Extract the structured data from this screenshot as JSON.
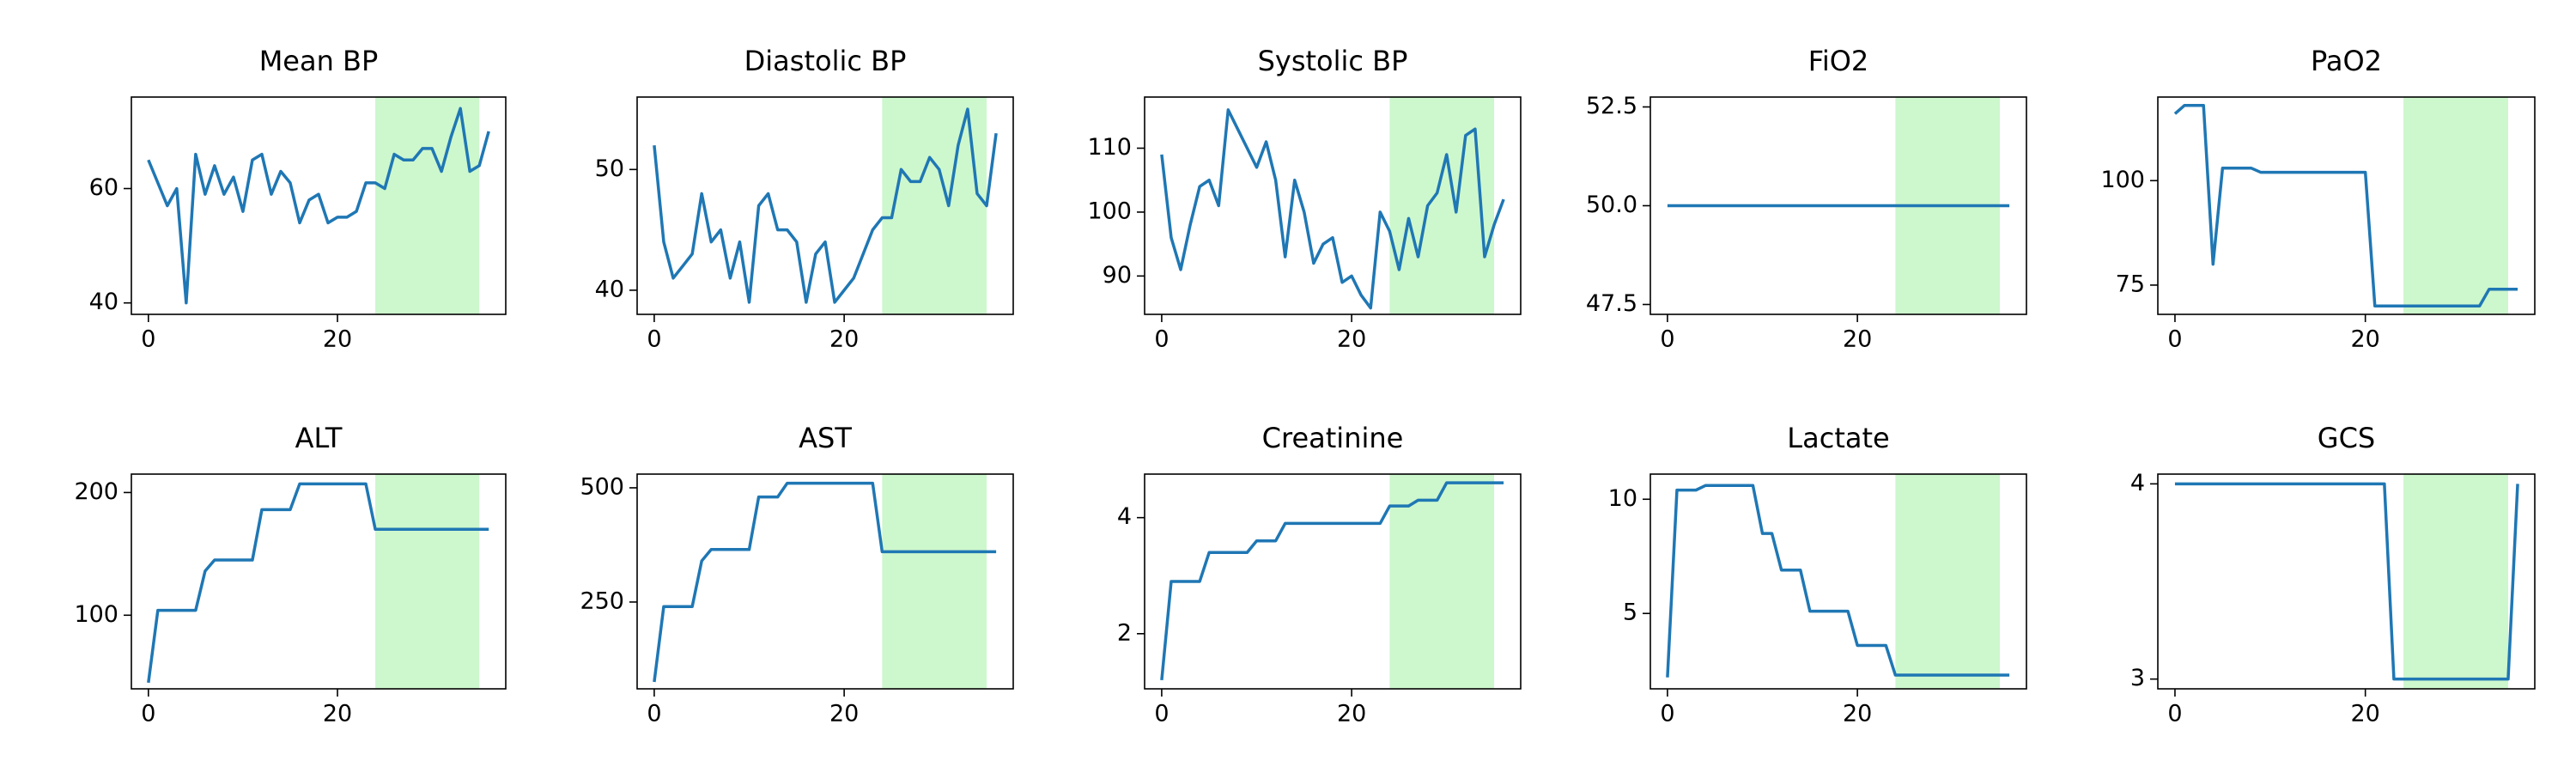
{
  "chart_data": [
    {
      "type": "line",
      "title": "Mean BP",
      "color": "#1f77b4",
      "span": {
        "range": [
          24,
          35
        ],
        "color": "#90ee90"
      },
      "x": [
        0,
        1,
        2,
        3,
        4,
        5,
        6,
        7,
        8,
        9,
        10,
        11,
        12,
        13,
        14,
        15,
        16,
        17,
        18,
        19,
        20,
        21,
        22,
        23,
        24,
        25,
        26,
        27,
        28,
        29,
        30,
        31,
        32,
        33,
        34,
        35,
        36
      ],
      "values": [
        65,
        61,
        57,
        60,
        40,
        66,
        59,
        64,
        59,
        62,
        56,
        65,
        66,
        59,
        63,
        61,
        54,
        58,
        59,
        54,
        55,
        55,
        56,
        61,
        61,
        60,
        66,
        65,
        65,
        67,
        67,
        63,
        69,
        74,
        63,
        64,
        70
      ],
      "xlim": [
        -1.8,
        37.8
      ],
      "ylim": [
        38,
        76
      ],
      "xticks": [
        0,
        20
      ],
      "yticks": [
        40,
        60
      ]
    },
    {
      "type": "line",
      "title": "Diastolic BP",
      "color": "#1f77b4",
      "span": {
        "range": [
          24,
          35
        ],
        "color": "#90ee90"
      },
      "x": [
        0,
        1,
        2,
        3,
        4,
        5,
        6,
        7,
        8,
        9,
        10,
        11,
        12,
        13,
        14,
        15,
        16,
        17,
        18,
        19,
        20,
        21,
        22,
        23,
        24,
        25,
        26,
        27,
        28,
        29,
        30,
        31,
        32,
        33,
        34,
        35,
        36
      ],
      "values": [
        52,
        44,
        41,
        42,
        43,
        48,
        44,
        45,
        41,
        44,
        39,
        47,
        48,
        45,
        45,
        44,
        39,
        43,
        44,
        39,
        40,
        41,
        43,
        45,
        46,
        46,
        50,
        49,
        49,
        51,
        50,
        47,
        52,
        55,
        48,
        47,
        53
      ],
      "xlim": [
        -1.8,
        37.8
      ],
      "ylim": [
        38,
        56
      ],
      "xticks": [
        0,
        20
      ],
      "yticks": [
        40,
        50
      ]
    },
    {
      "type": "line",
      "title": "Systolic BP",
      "color": "#1f77b4",
      "span": {
        "range": [
          24,
          35
        ],
        "color": "#90ee90"
      },
      "x": [
        0,
        1,
        2,
        3,
        4,
        5,
        6,
        7,
        8,
        9,
        10,
        11,
        12,
        13,
        14,
        15,
        16,
        17,
        18,
        19,
        20,
        21,
        22,
        23,
        24,
        25,
        26,
        27,
        28,
        29,
        30,
        31,
        32,
        33,
        34,
        35,
        36
      ],
      "values": [
        109,
        96,
        91,
        98,
        104,
        105,
        101,
        116,
        113,
        110,
        107,
        111,
        105,
        93,
        105,
        100,
        92,
        95,
        96,
        89,
        90,
        87,
        85,
        100,
        97,
        91,
        99,
        93,
        101,
        103,
        109,
        100,
        112,
        113,
        93,
        98,
        102
      ],
      "xlim": [
        -1.8,
        37.8
      ],
      "ylim": [
        84,
        118
      ],
      "xticks": [
        0,
        20
      ],
      "yticks": [
        90,
        100,
        110
      ]
    },
    {
      "type": "line",
      "title": "FiO2",
      "color": "#1f77b4",
      "span": {
        "range": [
          24,
          35
        ],
        "color": "#90ee90"
      },
      "x": [
        0,
        1,
        2,
        3,
        4,
        5,
        6,
        7,
        8,
        9,
        10,
        11,
        12,
        13,
        14,
        15,
        16,
        17,
        18,
        19,
        20,
        21,
        22,
        23,
        24,
        25,
        26,
        27,
        28,
        29,
        30,
        31,
        32,
        33,
        34,
        35,
        36
      ],
      "values": [
        50,
        50,
        50,
        50,
        50,
        50,
        50,
        50,
        50,
        50,
        50,
        50,
        50,
        50,
        50,
        50,
        50,
        50,
        50,
        50,
        50,
        50,
        50,
        50,
        50,
        50,
        50,
        50,
        50,
        50,
        50,
        50,
        50,
        50,
        50,
        50,
        50
      ],
      "xlim": [
        -1.8,
        37.8
      ],
      "ylim": [
        47.25,
        52.75
      ],
      "xticks": [
        0,
        20
      ],
      "yticks": [
        47.5,
        {
          "value": 50,
          "label": "50.0"
        },
        52.5
      ]
    },
    {
      "type": "line",
      "title": "PaO2",
      "color": "#1f77b4",
      "span": {
        "range": [
          24,
          35
        ],
        "color": "#90ee90"
      },
      "x": [
        0,
        1,
        2,
        3,
        4,
        5,
        6,
        7,
        8,
        9,
        10,
        11,
        12,
        13,
        14,
        15,
        16,
        17,
        18,
        19,
        20,
        21,
        22,
        23,
        24,
        25,
        26,
        27,
        28,
        29,
        30,
        31,
        32,
        33,
        34,
        35,
        36
      ],
      "values": [
        116,
        118,
        118,
        118,
        80,
        103,
        103,
        103,
        103,
        102,
        102,
        102,
        102,
        102,
        102,
        102,
        102,
        102,
        102,
        102,
        102,
        70,
        70,
        70,
        70,
        70,
        70,
        70,
        70,
        70,
        70,
        70,
        70,
        74,
        74,
        74,
        74
      ],
      "xlim": [
        -1.8,
        37.8
      ],
      "ylim": [
        68,
        120
      ],
      "xticks": [
        0,
        20
      ],
      "yticks": [
        75,
        100
      ]
    },
    {
      "type": "line",
      "title": "ALT",
      "color": "#1f77b4",
      "span": {
        "range": [
          24,
          35
        ],
        "color": "#90ee90"
      },
      "x": [
        0,
        1,
        2,
        3,
        4,
        5,
        6,
        7,
        8,
        9,
        10,
        11,
        12,
        13,
        14,
        15,
        16,
        17,
        18,
        19,
        20,
        21,
        22,
        23,
        24,
        25,
        26,
        27,
        28,
        29,
        30,
        31,
        32,
        33,
        34,
        35,
        36
      ],
      "values": [
        45,
        104,
        104,
        104,
        104,
        104,
        136,
        145,
        145,
        145,
        145,
        145,
        186,
        186,
        186,
        186,
        207,
        207,
        207,
        207,
        207,
        207,
        207,
        207,
        170,
        170,
        170,
        170,
        170,
        170,
        170,
        170,
        170,
        170,
        170,
        170,
        170
      ],
      "xlim": [
        -1.8,
        37.8
      ],
      "ylim": [
        40,
        215
      ],
      "xticks": [
        0,
        20
      ],
      "yticks": [
        100,
        200
      ]
    },
    {
      "type": "line",
      "title": "AST",
      "color": "#1f77b4",
      "span": {
        "range": [
          24,
          35
        ],
        "color": "#90ee90"
      },
      "x": [
        0,
        1,
        2,
        3,
        4,
        5,
        6,
        7,
        8,
        9,
        10,
        11,
        12,
        13,
        14,
        15,
        16,
        17,
        18,
        19,
        20,
        21,
        22,
        23,
        24,
        25,
        26,
        27,
        28,
        29,
        30,
        31,
        32,
        33,
        34,
        35,
        36
      ],
      "values": [
        75,
        240,
        240,
        240,
        240,
        340,
        365,
        365,
        365,
        365,
        365,
        480,
        480,
        480,
        510,
        510,
        510,
        510,
        510,
        510,
        510,
        510,
        510,
        510,
        360,
        360,
        360,
        360,
        360,
        360,
        360,
        360,
        360,
        360,
        360,
        360,
        360
      ],
      "xlim": [
        -1.8,
        37.8
      ],
      "ylim": [
        60,
        530
      ],
      "xticks": [
        0,
        20
      ],
      "yticks": [
        250,
        500
      ]
    },
    {
      "type": "line",
      "title": "Creatinine",
      "color": "#1f77b4",
      "span": {
        "range": [
          24,
          35
        ],
        "color": "#90ee90"
      },
      "x": [
        0,
        1,
        2,
        3,
        4,
        5,
        6,
        7,
        8,
        9,
        10,
        11,
        12,
        13,
        14,
        15,
        16,
        17,
        18,
        19,
        20,
        21,
        22,
        23,
        24,
        25,
        26,
        27,
        28,
        29,
        30,
        31,
        32,
        33,
        34,
        35,
        36
      ],
      "values": [
        1.2,
        2.9,
        2.9,
        2.9,
        2.9,
        3.4,
        3.4,
        3.4,
        3.4,
        3.4,
        3.6,
        3.6,
        3.6,
        3.9,
        3.9,
        3.9,
        3.9,
        3.9,
        3.9,
        3.9,
        3.9,
        3.9,
        3.9,
        3.9,
        4.2,
        4.2,
        4.2,
        4.3,
        4.3,
        4.3,
        4.6,
        4.6,
        4.6,
        4.6,
        4.6,
        4.6,
        4.6
      ],
      "xlim": [
        -1.8,
        37.8
      ],
      "ylim": [
        1.05,
        4.75
      ],
      "xticks": [
        0,
        20
      ],
      "yticks": [
        2,
        4
      ]
    },
    {
      "type": "line",
      "title": "Lactate",
      "color": "#1f77b4",
      "span": {
        "range": [
          24,
          35
        ],
        "color": "#90ee90"
      },
      "x": [
        0,
        1,
        2,
        3,
        4,
        5,
        6,
        7,
        8,
        9,
        10,
        11,
        12,
        13,
        14,
        15,
        16,
        17,
        18,
        19,
        20,
        21,
        22,
        23,
        24,
        25,
        26,
        27,
        28,
        29,
        30,
        31,
        32,
        33,
        34,
        35,
        36
      ],
      "values": [
        2.2,
        10.4,
        10.4,
        10.4,
        10.6,
        10.6,
        10.6,
        10.6,
        10.6,
        10.6,
        8.5,
        8.5,
        6.9,
        6.9,
        6.9,
        5.1,
        5.1,
        5.1,
        5.1,
        5.1,
        3.6,
        3.6,
        3.6,
        3.6,
        2.3,
        2.3,
        2.3,
        2.3,
        2.3,
        2.3,
        2.3,
        2.3,
        2.3,
        2.3,
        2.3,
        2.3,
        2.3
      ],
      "xlim": [
        -1.8,
        37.8
      ],
      "ylim": [
        1.7,
        11.1
      ],
      "xticks": [
        0,
        20
      ],
      "yticks": [
        5,
        10
      ]
    },
    {
      "type": "line",
      "title": "GCS",
      "color": "#1f77b4",
      "span": {
        "range": [
          24,
          35
        ],
        "color": "#90ee90"
      },
      "x": [
        0,
        1,
        2,
        3,
        4,
        5,
        6,
        7,
        8,
        9,
        10,
        11,
        12,
        13,
        14,
        15,
        16,
        17,
        18,
        19,
        20,
        21,
        22,
        23,
        24,
        25,
        26,
        27,
        28,
        29,
        30,
        31,
        32,
        33,
        34,
        35,
        36
      ],
      "values": [
        4,
        4,
        4,
        4,
        4,
        4,
        4,
        4,
        4,
        4,
        4,
        4,
        4,
        4,
        4,
        4,
        4,
        4,
        4,
        4,
        4,
        4,
        4,
        3,
        3,
        3,
        3,
        3,
        3,
        3,
        3,
        3,
        3,
        3,
        3,
        3,
        4
      ],
      "xlim": [
        -1.8,
        37.8
      ],
      "ylim": [
        2.95,
        4.05
      ],
      "xticks": [
        0,
        20
      ],
      "yticks": [
        3,
        4
      ]
    }
  ]
}
